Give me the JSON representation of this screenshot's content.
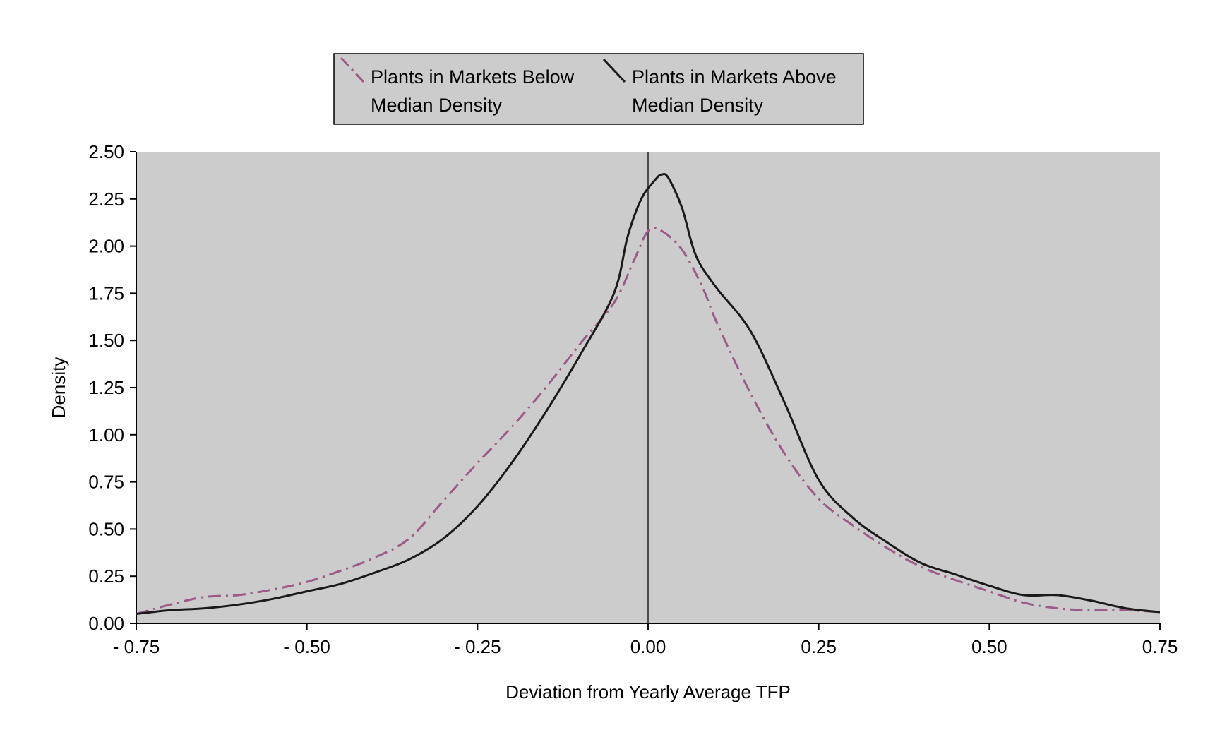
{
  "chart_data": {
    "type": "line",
    "title": "",
    "xlabel": "Deviation from Yearly Average TFP",
    "ylabel": "Density",
    "xlim": [
      -0.75,
      0.75
    ],
    "ylim": [
      0,
      2.5
    ],
    "x_ticks": [
      -0.75,
      -0.5,
      -0.25,
      0,
      0.25,
      0.5,
      0.75
    ],
    "x_tick_labels": [
      "- 0.75",
      "- 0.50",
      "- 0.25",
      "0.00",
      "0.25",
      "0.50",
      "0.75"
    ],
    "y_ticks": [
      0,
      0.25,
      0.5,
      0.75,
      1,
      1.25,
      1.5,
      1.75,
      2,
      2.25,
      2.5
    ],
    "y_tick_labels": [
      "0.00",
      "0.25",
      "0.50",
      "0.75",
      "1.00",
      "1.25",
      "1.50",
      "1.75",
      "2.00",
      "2.25",
      "2.50"
    ],
    "vertical_reference_line": 0,
    "grid": false,
    "legend_position": "top-center",
    "colors": {
      "plot_background": "#cccccc",
      "legend_background": "#cccccc",
      "below": "#9c5a87",
      "above": "#1a1a1a"
    },
    "series": [
      {
        "name": "Plants in Markets Below Median Density",
        "legend_lines": [
          "Plants in Markets Below",
          "Median Density"
        ],
        "style": "dash-dot",
        "points": [
          [
            -0.75,
            0.05
          ],
          [
            -0.7,
            0.1
          ],
          [
            -0.65,
            0.14
          ],
          [
            -0.6,
            0.15
          ],
          [
            -0.55,
            0.18
          ],
          [
            -0.5,
            0.22
          ],
          [
            -0.45,
            0.28
          ],
          [
            -0.4,
            0.35
          ],
          [
            -0.35,
            0.45
          ],
          [
            -0.3,
            0.65
          ],
          [
            -0.25,
            0.85
          ],
          [
            -0.2,
            1.04
          ],
          [
            -0.15,
            1.25
          ],
          [
            -0.1,
            1.48
          ],
          [
            -0.05,
            1.7
          ],
          [
            -0.02,
            1.93
          ],
          [
            0.0,
            2.08
          ],
          [
            0.02,
            2.08
          ],
          [
            0.05,
            1.98
          ],
          [
            0.08,
            1.78
          ],
          [
            0.1,
            1.6
          ],
          [
            0.15,
            1.22
          ],
          [
            0.2,
            0.9
          ],
          [
            0.25,
            0.66
          ],
          [
            0.3,
            0.52
          ],
          [
            0.35,
            0.4
          ],
          [
            0.4,
            0.3
          ],
          [
            0.45,
            0.23
          ],
          [
            0.5,
            0.17
          ],
          [
            0.55,
            0.11
          ],
          [
            0.6,
            0.08
          ],
          [
            0.65,
            0.07
          ],
          [
            0.7,
            0.07
          ],
          [
            0.75,
            0.06
          ]
        ]
      },
      {
        "name": "Plants in Markets Above Median Density",
        "legend_lines": [
          "Plants in Markets Above",
          "Median Density"
        ],
        "style": "solid",
        "points": [
          [
            -0.75,
            0.05
          ],
          [
            -0.7,
            0.07
          ],
          [
            -0.65,
            0.08
          ],
          [
            -0.6,
            0.1
          ],
          [
            -0.55,
            0.13
          ],
          [
            -0.5,
            0.17
          ],
          [
            -0.45,
            0.21
          ],
          [
            -0.4,
            0.27
          ],
          [
            -0.35,
            0.34
          ],
          [
            -0.3,
            0.45
          ],
          [
            -0.25,
            0.62
          ],
          [
            -0.2,
            0.85
          ],
          [
            -0.15,
            1.12
          ],
          [
            -0.1,
            1.42
          ],
          [
            -0.05,
            1.75
          ],
          [
            -0.03,
            2.05
          ],
          [
            -0.01,
            2.25
          ],
          [
            0.01,
            2.35
          ],
          [
            0.02,
            2.38
          ],
          [
            0.03,
            2.36
          ],
          [
            0.05,
            2.2
          ],
          [
            0.07,
            1.95
          ],
          [
            0.1,
            1.78
          ],
          [
            0.15,
            1.55
          ],
          [
            0.2,
            1.17
          ],
          [
            0.25,
            0.76
          ],
          [
            0.3,
            0.56
          ],
          [
            0.35,
            0.43
          ],
          [
            0.4,
            0.32
          ],
          [
            0.45,
            0.26
          ],
          [
            0.5,
            0.2
          ],
          [
            0.55,
            0.15
          ],
          [
            0.6,
            0.15
          ],
          [
            0.65,
            0.12
          ],
          [
            0.7,
            0.08
          ],
          [
            0.75,
            0.06
          ]
        ]
      }
    ]
  }
}
